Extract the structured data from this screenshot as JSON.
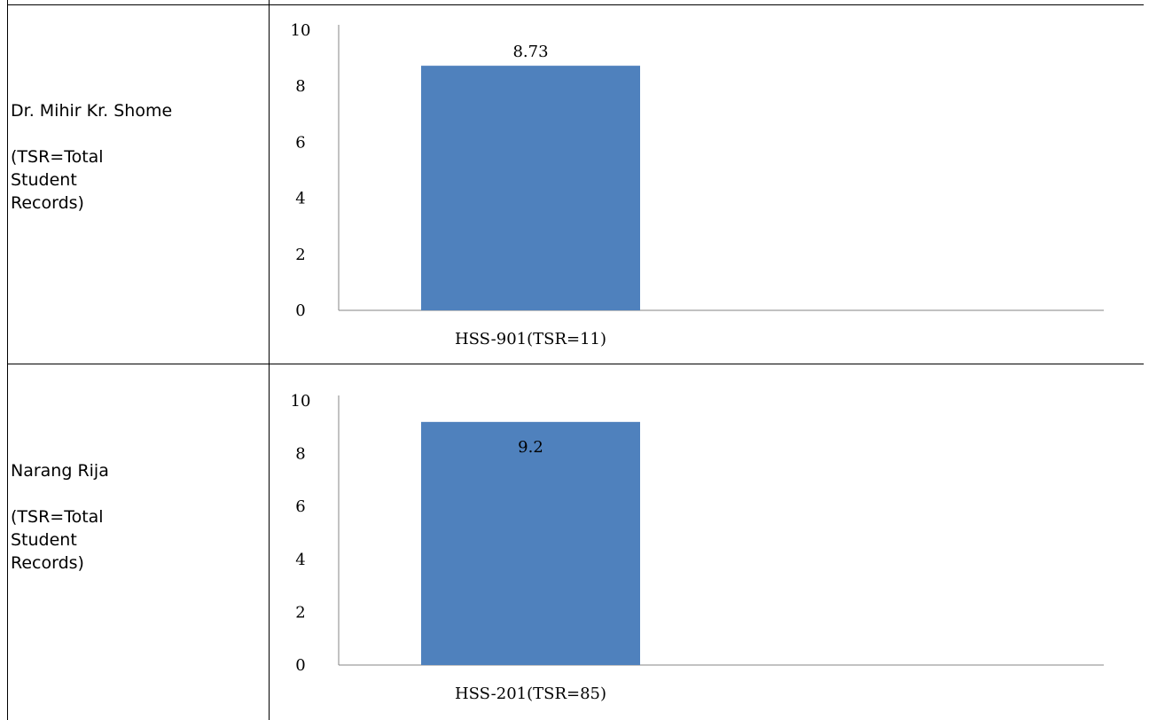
{
  "rows": [
    {
      "name": "Dr. Mihir Kr. Shome",
      "note": "(TSR=Total Student Records)"
    },
    {
      "name": "Narang Rija",
      "note": "(TSR=Total Student Records)"
    }
  ],
  "chart_data": [
    {
      "type": "bar",
      "categories": [
        "HSS-901(TSR=11)"
      ],
      "values": [
        8.73
      ],
      "data_labels": [
        "8.73"
      ],
      "yticks": [
        "0",
        "2",
        "4",
        "6",
        "8",
        "10"
      ],
      "ylim": [
        0,
        10
      ],
      "data_label_position": "above",
      "bar_color": "#4F81BD",
      "grid": false
    },
    {
      "type": "bar",
      "categories": [
        "HSS-201(TSR=85)"
      ],
      "values": [
        9.2
      ],
      "data_labels": [
        "9.2"
      ],
      "yticks": [
        "0",
        "2",
        "4",
        "6",
        "8",
        "10"
      ],
      "ylim": [
        0,
        10
      ],
      "data_label_position": "inside",
      "bar_color": "#4F81BD",
      "grid": false
    }
  ]
}
